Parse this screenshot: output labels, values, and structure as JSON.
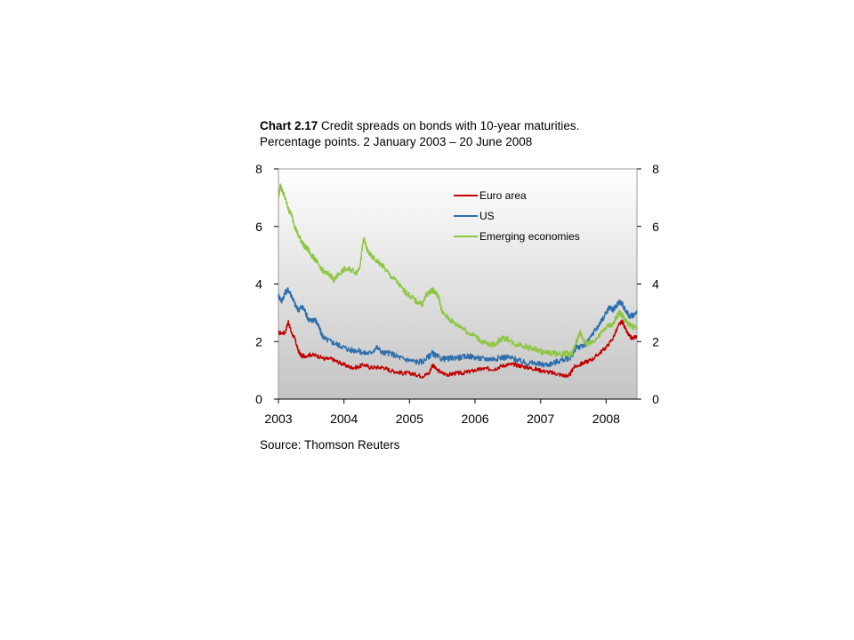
{
  "title_number": "Chart 2.17",
  "title_line1": "Credit spreads on bonds with 10-year maturities.",
  "title_line2": "Percentage points. 2 January 2003 – 20 June 2008",
  "source": "Source: Thomson Reuters",
  "chart_data": {
    "type": "line",
    "ylim": [
      0,
      8
    ],
    "xlim": [
      2003.0,
      2008.47
    ],
    "y_ticks": [
      0,
      2,
      4,
      6,
      8
    ],
    "x_ticks": [
      2003,
      2004,
      2005,
      2006,
      2007,
      2008
    ],
    "x_tick_labels": [
      "2003",
      "2004",
      "2005",
      "2006",
      "2007",
      "2008"
    ],
    "y_tick_labels": [
      "0",
      "2",
      "4",
      "6",
      "8"
    ],
    "legend_position": "top-right",
    "series": [
      {
        "name": "Euro area",
        "color": "#c00000",
        "points": [
          [
            2003.0,
            2.3
          ],
          [
            2003.1,
            2.3
          ],
          [
            2003.15,
            2.7
          ],
          [
            2003.2,
            2.3
          ],
          [
            2003.25,
            2.1
          ],
          [
            2003.3,
            1.7
          ],
          [
            2003.35,
            1.5
          ],
          [
            2003.4,
            1.5
          ],
          [
            2003.5,
            1.55
          ],
          [
            2003.6,
            1.5
          ],
          [
            2003.7,
            1.4
          ],
          [
            2003.8,
            1.4
          ],
          [
            2003.9,
            1.3
          ],
          [
            2004.0,
            1.2
          ],
          [
            2004.1,
            1.1
          ],
          [
            2004.2,
            1.1
          ],
          [
            2004.3,
            1.2
          ],
          [
            2004.4,
            1.1
          ],
          [
            2004.5,
            1.1
          ],
          [
            2004.6,
            1.1
          ],
          [
            2004.7,
            1.0
          ],
          [
            2004.8,
            0.95
          ],
          [
            2004.9,
            0.9
          ],
          [
            2005.0,
            0.9
          ],
          [
            2005.1,
            0.85
          ],
          [
            2005.2,
            0.8
          ],
          [
            2005.3,
            0.9
          ],
          [
            2005.35,
            1.2
          ],
          [
            2005.4,
            1.05
          ],
          [
            2005.5,
            0.9
          ],
          [
            2005.6,
            0.85
          ],
          [
            2005.7,
            0.9
          ],
          [
            2005.8,
            0.9
          ],
          [
            2005.9,
            0.95
          ],
          [
            2006.0,
            1.0
          ],
          [
            2006.1,
            1.05
          ],
          [
            2006.2,
            1.05
          ],
          [
            2006.3,
            1.05
          ],
          [
            2006.4,
            1.15
          ],
          [
            2006.5,
            1.2
          ],
          [
            2006.6,
            1.2
          ],
          [
            2006.7,
            1.15
          ],
          [
            2006.8,
            1.1
          ],
          [
            2006.9,
            1.05
          ],
          [
            2007.0,
            1.0
          ],
          [
            2007.1,
            0.95
          ],
          [
            2007.2,
            0.9
          ],
          [
            2007.3,
            0.85
          ],
          [
            2007.4,
            0.8
          ],
          [
            2007.45,
            0.85
          ],
          [
            2007.5,
            1.1
          ],
          [
            2007.6,
            1.2
          ],
          [
            2007.7,
            1.3
          ],
          [
            2007.8,
            1.4
          ],
          [
            2007.9,
            1.6
          ],
          [
            2008.0,
            1.8
          ],
          [
            2008.1,
            2.1
          ],
          [
            2008.2,
            2.6
          ],
          [
            2008.25,
            2.7
          ],
          [
            2008.3,
            2.4
          ],
          [
            2008.35,
            2.2
          ],
          [
            2008.4,
            2.1
          ],
          [
            2008.47,
            2.2
          ]
        ]
      },
      {
        "name": "US",
        "color": "#2e6fab",
        "points": [
          [
            2003.0,
            3.6
          ],
          [
            2003.05,
            3.4
          ],
          [
            2003.1,
            3.7
          ],
          [
            2003.15,
            3.8
          ],
          [
            2003.2,
            3.6
          ],
          [
            2003.25,
            3.3
          ],
          [
            2003.3,
            3.1
          ],
          [
            2003.35,
            3.2
          ],
          [
            2003.4,
            3.1
          ],
          [
            2003.45,
            2.8
          ],
          [
            2003.5,
            2.7
          ],
          [
            2003.55,
            2.8
          ],
          [
            2003.6,
            2.6
          ],
          [
            2003.65,
            2.3
          ],
          [
            2003.7,
            2.1
          ],
          [
            2003.8,
            2.0
          ],
          [
            2003.9,
            1.9
          ],
          [
            2004.0,
            1.8
          ],
          [
            2004.1,
            1.7
          ],
          [
            2004.2,
            1.7
          ],
          [
            2004.3,
            1.6
          ],
          [
            2004.4,
            1.6
          ],
          [
            2004.5,
            1.8
          ],
          [
            2004.6,
            1.6
          ],
          [
            2004.7,
            1.6
          ],
          [
            2004.8,
            1.5
          ],
          [
            2004.9,
            1.4
          ],
          [
            2005.0,
            1.35
          ],
          [
            2005.1,
            1.3
          ],
          [
            2005.2,
            1.3
          ],
          [
            2005.3,
            1.5
          ],
          [
            2005.35,
            1.6
          ],
          [
            2005.4,
            1.5
          ],
          [
            2005.5,
            1.4
          ],
          [
            2005.6,
            1.4
          ],
          [
            2005.7,
            1.45
          ],
          [
            2005.8,
            1.45
          ],
          [
            2005.9,
            1.5
          ],
          [
            2006.0,
            1.45
          ],
          [
            2006.1,
            1.4
          ],
          [
            2006.2,
            1.4
          ],
          [
            2006.3,
            1.4
          ],
          [
            2006.4,
            1.45
          ],
          [
            2006.5,
            1.45
          ],
          [
            2006.6,
            1.4
          ],
          [
            2006.7,
            1.3
          ],
          [
            2006.8,
            1.25
          ],
          [
            2006.9,
            1.25
          ],
          [
            2007.0,
            1.2
          ],
          [
            2007.1,
            1.2
          ],
          [
            2007.2,
            1.25
          ],
          [
            2007.3,
            1.35
          ],
          [
            2007.4,
            1.4
          ],
          [
            2007.45,
            1.45
          ],
          [
            2007.5,
            1.6
          ],
          [
            2007.55,
            1.85
          ],
          [
            2007.6,
            1.8
          ],
          [
            2007.7,
            1.9
          ],
          [
            2007.8,
            2.3
          ],
          [
            2007.9,
            2.6
          ],
          [
            2008.0,
            3.0
          ],
          [
            2008.05,
            3.2
          ],
          [
            2008.1,
            3.1
          ],
          [
            2008.15,
            3.2
          ],
          [
            2008.2,
            3.4
          ],
          [
            2008.25,
            3.3
          ],
          [
            2008.3,
            3.05
          ],
          [
            2008.35,
            2.9
          ],
          [
            2008.4,
            2.9
          ],
          [
            2008.47,
            3.0
          ]
        ]
      },
      {
        "name": "Emerging economies",
        "color": "#8dc63f",
        "points": [
          [
            2003.0,
            7.0
          ],
          [
            2003.03,
            7.4
          ],
          [
            2003.05,
            7.3
          ],
          [
            2003.1,
            7.0
          ],
          [
            2003.15,
            6.6
          ],
          [
            2003.2,
            6.4
          ],
          [
            2003.25,
            6.0
          ],
          [
            2003.3,
            5.7
          ],
          [
            2003.35,
            5.5
          ],
          [
            2003.4,
            5.3
          ],
          [
            2003.45,
            5.2
          ],
          [
            2003.5,
            5.0
          ],
          [
            2003.55,
            4.9
          ],
          [
            2003.6,
            4.7
          ],
          [
            2003.7,
            4.4
          ],
          [
            2003.8,
            4.3
          ],
          [
            2003.85,
            4.1
          ],
          [
            2003.9,
            4.3
          ],
          [
            2004.0,
            4.5
          ],
          [
            2004.1,
            4.5
          ],
          [
            2004.2,
            4.4
          ],
          [
            2004.25,
            4.7
          ],
          [
            2004.3,
            5.6
          ],
          [
            2004.35,
            5.2
          ],
          [
            2004.4,
            5.0
          ],
          [
            2004.5,
            4.8
          ],
          [
            2004.6,
            4.6
          ],
          [
            2004.7,
            4.3
          ],
          [
            2004.8,
            4.1
          ],
          [
            2004.9,
            3.8
          ],
          [
            2005.0,
            3.6
          ],
          [
            2005.1,
            3.4
          ],
          [
            2005.2,
            3.3
          ],
          [
            2005.25,
            3.6
          ],
          [
            2005.3,
            3.7
          ],
          [
            2005.35,
            3.8
          ],
          [
            2005.4,
            3.7
          ],
          [
            2005.45,
            3.5
          ],
          [
            2005.5,
            3.0
          ],
          [
            2005.6,
            2.8
          ],
          [
            2005.7,
            2.6
          ],
          [
            2005.8,
            2.5
          ],
          [
            2005.9,
            2.3
          ],
          [
            2006.0,
            2.2
          ],
          [
            2006.1,
            2.0
          ],
          [
            2006.2,
            1.9
          ],
          [
            2006.3,
            1.9
          ],
          [
            2006.4,
            2.1
          ],
          [
            2006.5,
            2.1
          ],
          [
            2006.6,
            1.9
          ],
          [
            2006.7,
            1.9
          ],
          [
            2006.8,
            1.8
          ],
          [
            2006.9,
            1.75
          ],
          [
            2007.0,
            1.65
          ],
          [
            2007.1,
            1.6
          ],
          [
            2007.2,
            1.6
          ],
          [
            2007.3,
            1.55
          ],
          [
            2007.4,
            1.6
          ],
          [
            2007.45,
            1.5
          ],
          [
            2007.5,
            1.7
          ],
          [
            2007.55,
            2.0
          ],
          [
            2007.6,
            2.3
          ],
          [
            2007.65,
            2.1
          ],
          [
            2007.7,
            1.9
          ],
          [
            2007.8,
            2.0
          ],
          [
            2007.9,
            2.2
          ],
          [
            2008.0,
            2.5
          ],
          [
            2008.1,
            2.6
          ],
          [
            2008.15,
            2.8
          ],
          [
            2008.2,
            3.0
          ],
          [
            2008.25,
            2.9
          ],
          [
            2008.3,
            2.7
          ],
          [
            2008.35,
            2.6
          ],
          [
            2008.4,
            2.5
          ],
          [
            2008.47,
            2.5
          ]
        ]
      }
    ]
  }
}
